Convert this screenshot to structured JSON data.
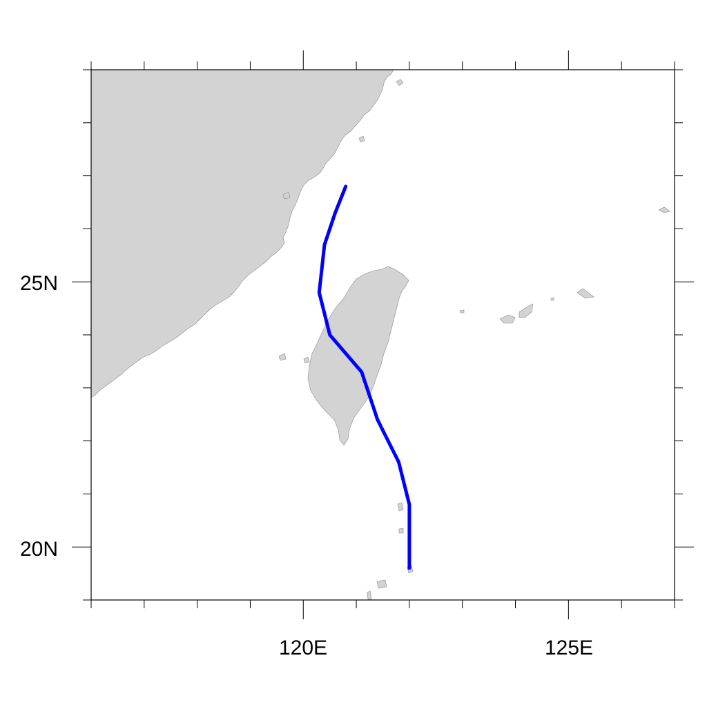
{
  "map": {
    "lon_range": [
      116,
      127
    ],
    "lat_range": [
      19,
      29
    ],
    "x_axis": {
      "major_ticks": [
        120,
        125
      ],
      "labels": [
        "120E",
        "125E"
      ],
      "minor_step": 1
    },
    "y_axis": {
      "major_ticks": [
        20,
        25
      ],
      "labels": [
        "20N",
        "25N"
      ],
      "minor_step": 1
    },
    "land_color": "#d3d3d3",
    "track_color": "#0000ff",
    "regions": [
      "mainland-china-coast",
      "taiwan",
      "ryukyu-islands",
      "batanes-islands"
    ]
  },
  "chart_data": {
    "type": "line",
    "track": {
      "lon": [
        120.8,
        120.6,
        120.4,
        120.3,
        120.5,
        121.1,
        121.4,
        121.8,
        122.0,
        122.0
      ],
      "lat": [
        26.8,
        26.3,
        25.7,
        24.8,
        24.0,
        23.3,
        22.4,
        21.6,
        20.8,
        19.6
      ]
    }
  }
}
